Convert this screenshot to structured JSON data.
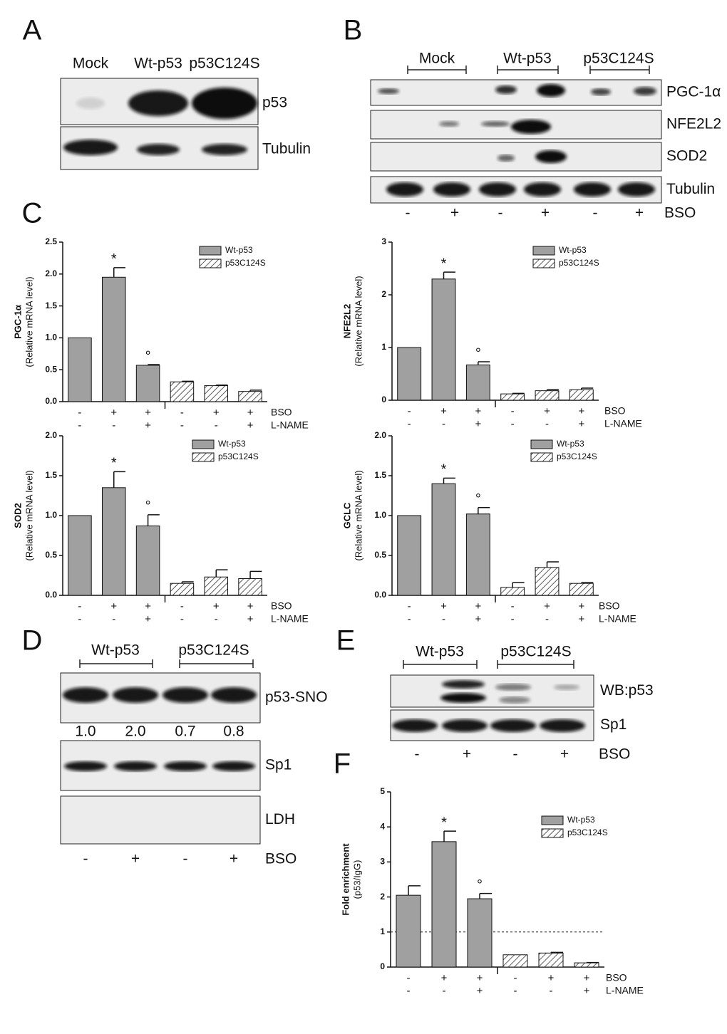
{
  "blot_a": {
    "label": "A",
    "lanes": [
      "Mock",
      "Wt-p53",
      "p53C124S"
    ],
    "rows": [
      "p53",
      "Tubulin"
    ]
  },
  "blot_b": {
    "label": "B",
    "groups": [
      "Mock",
      "Wt-p53",
      "p53C124S"
    ],
    "rows": [
      "PGC-1α",
      "NFE2L2",
      "SOD2",
      "Tubulin"
    ],
    "signs": [
      "-",
      "+",
      "-",
      "+",
      "-",
      "+"
    ],
    "treatment": "BSO"
  },
  "panel_c": {
    "label": "C"
  },
  "blot_d": {
    "label": "D",
    "groups": [
      "Wt-p53",
      "p53C124S"
    ],
    "rows": [
      "p53-SNO",
      "Sp1",
      "LDH"
    ],
    "ratios": [
      "1.0",
      "2.0",
      "0.7",
      "0.8"
    ],
    "signs": [
      "-",
      "+",
      "-",
      "+"
    ],
    "treatment": "BSO"
  },
  "blot_e": {
    "label": "E",
    "groups": [
      "Wt-p53",
      "p53C124S"
    ],
    "rows": [
      "WB:p53",
      "Sp1"
    ],
    "signs": [
      "-",
      "+",
      "-",
      "+"
    ],
    "treatment": "BSO"
  },
  "panel_f": {
    "label": "F"
  },
  "chart_data": [
    {
      "type": "bar",
      "ylabel": "PGC-1α",
      "ylabel_sub": "(Relative mRNA level)",
      "series": [
        {
          "name": "Wt-p53",
          "color": "#a0a0a0",
          "pattern": "solid",
          "values": [
            1.0,
            1.95,
            0.57,
            null,
            null,
            null
          ],
          "errors": [
            0,
            0.15,
            0.01,
            null,
            null,
            null
          ]
        },
        {
          "name": "p53C124S",
          "color": "#ffffff",
          "pattern": "hatch",
          "values": [
            null,
            null,
            null,
            0.31,
            0.25,
            0.16
          ],
          "errors": [
            null,
            null,
            null,
            0.01,
            0.01,
            0.02
          ]
        }
      ],
      "markers": [
        null,
        "*",
        "°",
        null,
        null,
        null
      ],
      "bso": [
        "-",
        "+",
        "+",
        "-",
        "+",
        "+"
      ],
      "lname": [
        "-",
        "-",
        "+",
        "-",
        "-",
        "+"
      ],
      "sign_labels": [
        "BSO",
        "L-NAME"
      ],
      "ylim": [
        0,
        2.5
      ],
      "yticks": [
        {
          "value": 0,
          "label": "0.0"
        },
        0.5,
        {
          "value": 1,
          "label": "1.0"
        },
        1.5,
        {
          "value": 2,
          "label": "2.0"
        },
        2.5
      ]
    },
    {
      "type": "bar",
      "ylabel": "NFE2L2",
      "ylabel_sub": "(Relative mRNA level)",
      "series": [
        {
          "name": "Wt-p53",
          "color": "#a0a0a0",
          "pattern": "solid",
          "values": [
            1.0,
            2.3,
            0.67,
            null,
            null,
            null
          ],
          "errors": [
            0,
            0.13,
            0.06,
            null,
            null,
            null
          ]
        },
        {
          "name": "p53C124S",
          "color": "#ffffff",
          "pattern": "hatch",
          "values": [
            null,
            null,
            null,
            0.12,
            0.18,
            0.2
          ],
          "errors": [
            null,
            null,
            null,
            0.01,
            0.02,
            0.03
          ]
        }
      ],
      "markers": [
        null,
        "*",
        "°",
        null,
        null,
        null
      ],
      "bso": [
        "-",
        "+",
        "+",
        "-",
        "+",
        "+"
      ],
      "lname": [
        "-",
        "-",
        "+",
        "-",
        "-",
        "+"
      ],
      "sign_labels": [
        "BSO",
        "L-NAME"
      ],
      "ylim": [
        0,
        3
      ],
      "yticks": [
        0,
        1,
        2,
        3
      ]
    },
    {
      "type": "bar",
      "ylabel": "SOD2",
      "ylabel_sub": "(Relative mRNA level)",
      "series": [
        {
          "name": "Wt-p53",
          "color": "#a0a0a0",
          "pattern": "solid",
          "values": [
            1.0,
            1.35,
            0.87,
            null,
            null,
            null
          ],
          "errors": [
            0,
            0.2,
            0.14,
            null,
            null,
            null
          ]
        },
        {
          "name": "p53C124S",
          "color": "#ffffff",
          "pattern": "hatch",
          "values": [
            null,
            null,
            null,
            0.15,
            0.23,
            0.21
          ],
          "errors": [
            null,
            null,
            null,
            0.02,
            0.09,
            0.09
          ]
        }
      ],
      "markers": [
        null,
        "*",
        "°",
        null,
        null,
        null
      ],
      "bso": [
        "-",
        "+",
        "+",
        "-",
        "+",
        "+"
      ],
      "lname": [
        "-",
        "-",
        "+",
        "-",
        "-",
        "+"
      ],
      "sign_labels": [
        "BSO",
        "L-NAME"
      ],
      "ylim": [
        0,
        2
      ],
      "yticks": [
        {
          "value": 0,
          "label": "0.0"
        },
        0.5,
        {
          "value": 1,
          "label": "1.0"
        },
        1.5,
        {
          "value": 2,
          "label": "2.0"
        }
      ]
    },
    {
      "type": "bar",
      "ylabel": "GCLC",
      "ylabel_sub": "(Relative mRNA level)",
      "series": [
        {
          "name": "Wt-p53",
          "color": "#a0a0a0",
          "pattern": "solid",
          "values": [
            1.0,
            1.4,
            1.02,
            null,
            null,
            null
          ],
          "errors": [
            0,
            0.07,
            0.08,
            null,
            null,
            null
          ]
        },
        {
          "name": "p53C124S",
          "color": "#ffffff",
          "pattern": "hatch",
          "values": [
            null,
            null,
            null,
            0.1,
            0.35,
            0.15
          ],
          "errors": [
            null,
            null,
            null,
            0.06,
            0.07,
            0.01
          ]
        }
      ],
      "markers": [
        null,
        "*",
        "°",
        null,
        null,
        null
      ],
      "bso": [
        "-",
        "+",
        "+",
        "-",
        "+",
        "+"
      ],
      "lname": [
        "-",
        "-",
        "+",
        "-",
        "-",
        "+"
      ],
      "sign_labels": [
        "BSO",
        "L-NAME"
      ],
      "ylim": [
        0,
        2
      ],
      "yticks": [
        {
          "value": 0,
          "label": "0.0"
        },
        0.5,
        {
          "value": 1,
          "label": "1.0"
        },
        1.5,
        {
          "value": 2,
          "label": "2.0"
        }
      ]
    },
    {
      "type": "bar",
      "ylabel": "Fold enrichment",
      "ylabel_sub": "(p53/IgG)",
      "series": [
        {
          "name": "Wt-p53",
          "color": "#a0a0a0",
          "pattern": "solid",
          "values": [
            2.05,
            3.58,
            1.95,
            null,
            null,
            null
          ],
          "errors": [
            0.27,
            0.3,
            0.15,
            null,
            null,
            null
          ]
        },
        {
          "name": "p53C124S",
          "color": "#ffffff",
          "pattern": "hatch",
          "values": [
            null,
            null,
            null,
            0.35,
            0.4,
            0.12
          ],
          "errors": [
            null,
            null,
            null,
            0,
            0.02,
            0.01
          ]
        }
      ],
      "markers": [
        null,
        "*",
        "°",
        null,
        null,
        null
      ],
      "bso": [
        "-",
        "+",
        "+",
        "-",
        "+",
        "+"
      ],
      "lname": [
        "-",
        "-",
        "+",
        "-",
        "-",
        "+"
      ],
      "sign_labels": [
        "BSO",
        "L-NAME"
      ],
      "ylim": [
        0,
        5
      ],
      "yticks": [
        0,
        1,
        2,
        3,
        4,
        5
      ],
      "reference_line": 1
    }
  ]
}
